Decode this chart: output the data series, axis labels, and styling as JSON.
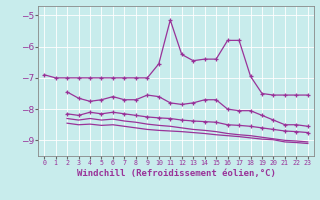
{
  "xlabel": "Windchill (Refroidissement éolien,°C)",
  "background_color": "#c8ecec",
  "line_color": "#993399",
  "xlim": [
    -0.5,
    23.5
  ],
  "ylim": [
    -9.5,
    -4.7
  ],
  "yticks": [
    -9,
    -8,
    -7,
    -6,
    -5
  ],
  "series1_x": [
    0,
    1,
    2,
    3,
    4,
    5,
    6,
    7,
    8,
    9,
    10,
    11,
    12,
    13,
    14,
    15,
    16,
    17,
    18,
    19,
    20,
    21,
    22,
    23
  ],
  "series1_y": [
    -6.9,
    -7.0,
    -7.0,
    -7.0,
    -7.0,
    -7.0,
    -7.0,
    -7.0,
    -7.0,
    -7.0,
    -6.55,
    -5.15,
    -6.25,
    -6.45,
    -6.4,
    -6.4,
    -5.8,
    -5.8,
    -6.95,
    -7.5,
    -7.55,
    -7.55,
    -7.55,
    -7.55
  ],
  "series2_x": [
    2,
    3,
    4,
    5,
    6,
    7,
    8,
    9,
    10,
    11,
    12,
    13,
    14,
    15,
    16,
    17,
    18,
    19,
    20,
    21,
    22,
    23
  ],
  "series2_y": [
    -7.45,
    -7.65,
    -7.75,
    -7.7,
    -7.6,
    -7.7,
    -7.7,
    -7.55,
    -7.6,
    -7.8,
    -7.85,
    -7.8,
    -7.7,
    -7.7,
    -8.0,
    -8.05,
    -8.05,
    -8.2,
    -8.35,
    -8.5,
    -8.5,
    -8.55
  ],
  "series3_x": [
    2,
    3,
    4,
    5,
    6,
    7,
    8,
    9,
    10,
    11,
    12,
    13,
    14,
    15,
    16,
    17,
    18,
    19,
    20,
    21,
    22,
    23
  ],
  "series3_y": [
    -8.15,
    -8.2,
    -8.1,
    -8.15,
    -8.1,
    -8.15,
    -8.2,
    -8.25,
    -8.28,
    -8.3,
    -8.35,
    -8.38,
    -8.4,
    -8.42,
    -8.5,
    -8.52,
    -8.55,
    -8.6,
    -8.65,
    -8.7,
    -8.72,
    -8.75
  ],
  "series4_x": [
    2,
    3,
    4,
    5,
    6,
    7,
    8,
    9,
    10,
    11,
    12,
    13,
    14,
    15,
    16,
    17,
    18,
    19,
    20,
    21,
    22,
    23
  ],
  "series4_y": [
    -8.3,
    -8.35,
    -8.3,
    -8.35,
    -8.32,
    -8.38,
    -8.42,
    -8.48,
    -8.52,
    -8.55,
    -8.6,
    -8.65,
    -8.68,
    -8.72,
    -8.78,
    -8.82,
    -8.85,
    -8.9,
    -8.95,
    -9.0,
    -9.02,
    -9.05
  ],
  "series5_x": [
    2,
    3,
    4,
    5,
    6,
    7,
    8,
    9,
    10,
    11,
    12,
    13,
    14,
    15,
    16,
    17,
    18,
    19,
    20,
    21,
    22,
    23
  ],
  "series5_y": [
    -8.45,
    -8.5,
    -8.48,
    -8.52,
    -8.5,
    -8.55,
    -8.6,
    -8.65,
    -8.68,
    -8.7,
    -8.72,
    -8.75,
    -8.78,
    -8.82,
    -8.85,
    -8.88,
    -8.92,
    -8.96,
    -8.98,
    -9.05,
    -9.07,
    -9.1
  ]
}
